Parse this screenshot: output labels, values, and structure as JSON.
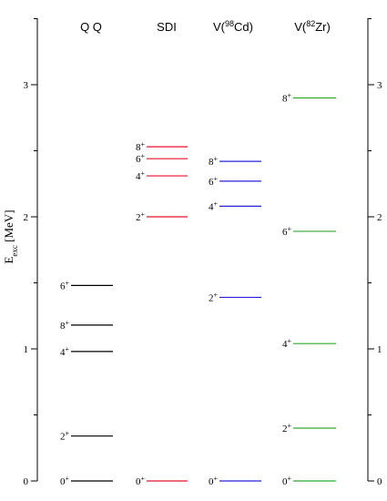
{
  "chart_data": {
    "type": "level-scheme",
    "ylabel": {
      "main": "E",
      "sub": "exc",
      "unit": " [MeV]"
    },
    "ylim": [
      0,
      3.5
    ],
    "ticks": [
      {
        "value": 0,
        "label": "0"
      },
      {
        "value": 1,
        "label": "1"
      },
      {
        "value": 2,
        "label": "2"
      },
      {
        "value": 3,
        "label": "3"
      }
    ],
    "columns": [
      {
        "title": "Q Q",
        "color": "#000000",
        "levels": [
          {
            "j": "0",
            "parity": "+",
            "energy": 0.0
          },
          {
            "j": "2",
            "parity": "+",
            "energy": 0.34
          },
          {
            "j": "4",
            "parity": "+",
            "energy": 0.98
          },
          {
            "j": "8",
            "parity": "+",
            "energy": 1.18
          },
          {
            "j": "6",
            "parity": "+",
            "energy": 1.48
          }
        ]
      },
      {
        "title": "SDI",
        "color": "#e8102a",
        "levels": [
          {
            "j": "0",
            "parity": "+",
            "energy": 0.0
          },
          {
            "j": "2",
            "parity": "+",
            "energy": 2.0
          },
          {
            "j": "4",
            "parity": "+",
            "energy": 2.31
          },
          {
            "j": "6",
            "parity": "+",
            "energy": 2.44
          },
          {
            "j": "8",
            "parity": "+",
            "energy": 2.53
          }
        ]
      },
      {
        "title": "V(",
        "title_sup": "98",
        "title_after": "Cd)",
        "color": "#2323d8",
        "levels": [
          {
            "j": "0",
            "parity": "+",
            "energy": 0.0
          },
          {
            "j": "2",
            "parity": "+",
            "energy": 1.39
          },
          {
            "j": "4",
            "parity": "+",
            "energy": 2.08
          },
          {
            "j": "6",
            "parity": "+",
            "energy": 2.27
          },
          {
            "j": "8",
            "parity": "+",
            "energy": 2.42
          }
        ]
      },
      {
        "title": "V(",
        "title_sup": "82",
        "title_after": "Zr)",
        "color": "#2eaa2e",
        "levels": [
          {
            "j": "0",
            "parity": "+",
            "energy": 0.0
          },
          {
            "j": "2",
            "parity": "+",
            "energy": 0.4
          },
          {
            "j": "4",
            "parity": "+",
            "energy": 1.04
          },
          {
            "j": "6",
            "parity": "+",
            "energy": 1.89
          },
          {
            "j": "8",
            "parity": "+",
            "energy": 2.9
          }
        ]
      }
    ]
  }
}
